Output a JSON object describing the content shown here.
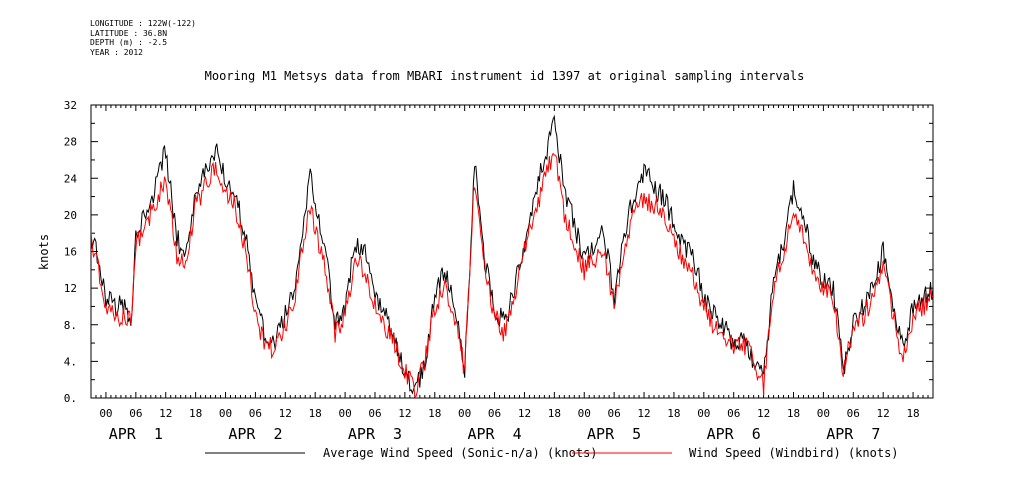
{
  "header": {
    "meta": [
      "LONGITUDE : 122W(-122)",
      "LATITUDE : 36.8N",
      "DEPTH (m) : -2.5",
      "YEAR : 2012"
    ],
    "title": "Mooring M1 Metsys data from MBARI instrument id 1397 at original sampling intervals"
  },
  "chart_data": {
    "type": "line",
    "title": "Mooring M1 Metsys data from MBARI instrument id 1397 at original sampling intervals",
    "xlabel": "",
    "ylabel": "knots",
    "ylim": [
      0,
      32
    ],
    "y_ticks": [
      "0.",
      "4.",
      "8.",
      "12",
      "16",
      "20",
      "24",
      "28",
      "32"
    ],
    "x_hours_range": [
      -3,
      166
    ],
    "x_hour_ticks": [
      "00",
      "06",
      "12",
      "18",
      "00",
      "06",
      "12",
      "18",
      "00",
      "06",
      "12",
      "18",
      "00",
      "06",
      "12",
      "18",
      "00",
      "06",
      "12",
      "18",
      "00",
      "06",
      "12",
      "18",
      "00",
      "06",
      "12",
      "18"
    ],
    "day_labels": [
      "APR  1",
      "APR  2",
      "APR  3",
      "APR  4",
      "APR  5",
      "APR  6",
      "APR  7"
    ],
    "grid": false,
    "legend_position": "bottom",
    "x_units": "hours since APR 1 00:00, 2012",
    "series": [
      {
        "name": "Average Wind Speed (Sonic-n/a) (knots)",
        "color": "#000000",
        "x": [
          -3,
          -1,
          0,
          2,
          4,
          5,
          6,
          8,
          10,
          12,
          14,
          16,
          18,
          20,
          22,
          24,
          26,
          28,
          30,
          32,
          34,
          36,
          38,
          39,
          41,
          44,
          46,
          48,
          50,
          52,
          54,
          57,
          60,
          62,
          64,
          66,
          68,
          70,
          72,
          74,
          76,
          78,
          80,
          82,
          84,
          86,
          88,
          90,
          92,
          94,
          96,
          98,
          100,
          102,
          104,
          106,
          108,
          110,
          112,
          114,
          116,
          118,
          120,
          122,
          124,
          126,
          128,
          130,
          132,
          134,
          136,
          138,
          140,
          142,
          144,
          146,
          148,
          150,
          152,
          154,
          156,
          158,
          160,
          162,
          164,
          166
        ],
        "y": [
          18,
          14,
          11,
          10,
          10,
          8,
          18,
          20,
          23,
          27,
          18,
          15,
          22,
          25,
          27,
          24,
          22,
          18,
          10,
          7,
          6,
          9,
          12,
          16,
          24,
          16,
          8,
          10,
          17,
          16,
          11,
          8,
          3,
          0.6,
          4,
          11,
          14,
          10,
          3,
          26,
          15,
          10,
          8,
          12,
          17,
          22,
          26,
          30,
          23,
          19,
          15,
          17,
          18,
          11,
          18,
          22,
          25,
          23,
          22,
          19,
          17,
          15,
          11,
          9,
          8,
          6,
          6,
          4,
          2,
          13,
          17,
          23,
          20,
          15,
          13,
          12,
          3,
          8,
          10,
          12,
          16,
          10,
          5,
          10,
          11,
          12
        ],
        "values": [
          18,
          14,
          11,
          10,
          10,
          8,
          18,
          20,
          23,
          27,
          18,
          15,
          22,
          25,
          27,
          24,
          22,
          18,
          10,
          7,
          6,
          9,
          12,
          16,
          24,
          16,
          8,
          10,
          17,
          16,
          11,
          8,
          3,
          0.6,
          4,
          11,
          14,
          10,
          3,
          26,
          15,
          10,
          8,
          12,
          17,
          22,
          26,
          30,
          23,
          19,
          15,
          17,
          18,
          11,
          18,
          22,
          25,
          23,
          22,
          19,
          17,
          15,
          11,
          9,
          8,
          6,
          6,
          4,
          2,
          13,
          17,
          23,
          20,
          15,
          13,
          12,
          3,
          8,
          10,
          12,
          16,
          10,
          5,
          10,
          11,
          12
        ]
      },
      {
        "name": "Wind Speed (Windbird) (knots)",
        "color": "#ff0000",
        "x": [
          -3,
          -1,
          0,
          2,
          4,
          5,
          6,
          8,
          10,
          12,
          14,
          16,
          18,
          20,
          22,
          24,
          26,
          28,
          30,
          32,
          34,
          36,
          38,
          39,
          41,
          44,
          46,
          48,
          50,
          52,
          54,
          57,
          60,
          62,
          64,
          66,
          68,
          70,
          72,
          74,
          76,
          78,
          80,
          82,
          84,
          86,
          88,
          90,
          92,
          94,
          96,
          98,
          100,
          102,
          104,
          106,
          108,
          110,
          112,
          114,
          116,
          118,
          120,
          122,
          124,
          126,
          128,
          130,
          132,
          134,
          136,
          138,
          140,
          142,
          144,
          146,
          148,
          150,
          152,
          154,
          156,
          158,
          160,
          162,
          164,
          166
        ],
        "y": [
          17,
          13,
          10,
          9,
          9,
          8,
          17,
          19,
          21,
          24,
          16,
          14,
          21,
          23,
          25,
          22,
          21,
          16,
          9,
          6,
          5,
          8,
          11,
          15,
          21,
          14,
          7,
          9,
          15,
          14,
          10,
          7,
          3,
          0.5,
          4,
          10,
          12,
          9,
          3,
          24,
          14,
          9,
          7,
          11,
          16,
          20,
          24,
          27,
          20,
          17,
          14,
          15,
          16,
          10,
          16,
          20,
          22,
          21,
          20,
          17,
          15,
          13,
          10,
          8,
          7,
          6,
          6,
          4,
          1.5,
          12,
          16,
          20,
          18,
          14,
          12,
          11,
          3,
          7,
          9,
          11,
          15,
          9,
          4,
          9,
          10,
          11
        ],
        "values": [
          17,
          13,
          10,
          9,
          9,
          8,
          17,
          19,
          21,
          24,
          16,
          14,
          21,
          23,
          25,
          22,
          21,
          16,
          9,
          6,
          5,
          8,
          11,
          15,
          21,
          14,
          7,
          9,
          15,
          14,
          10,
          7,
          3,
          0.5,
          4,
          10,
          12,
          9,
          3,
          24,
          14,
          9,
          7,
          11,
          16,
          20,
          24,
          27,
          20,
          17,
          14,
          15,
          16,
          10,
          16,
          20,
          22,
          21,
          20,
          17,
          15,
          13,
          10,
          8,
          7,
          6,
          6,
          4,
          1.5,
          12,
          16,
          20,
          18,
          14,
          12,
          11,
          3,
          7,
          9,
          11,
          15,
          9,
          4,
          9,
          10,
          11
        ]
      }
    ]
  }
}
